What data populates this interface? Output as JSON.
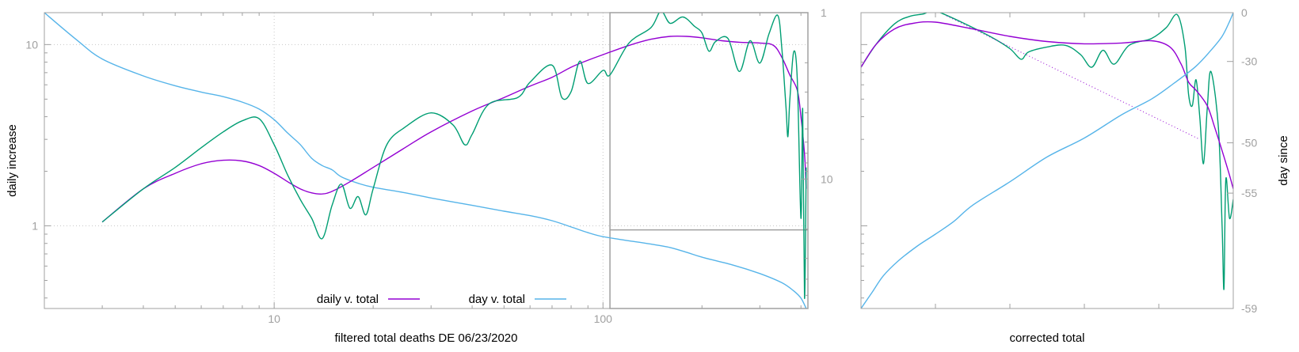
{
  "colors": {
    "daily": "#9400d3",
    "day": "#56b4e9",
    "raw": "#009e73",
    "axis": "#a0a0a0",
    "grid": "#c8c8c8"
  },
  "chart_data": [
    {
      "type": "line",
      "xlabel": "filtered total deaths DE 06/23/2020",
      "ylabel": "daily increase",
      "xscale": "log",
      "yscale": "log",
      "xlim": [
        2,
        420
      ],
      "ylim": [
        0.35,
        15
      ],
      "y2scale": "log",
      "y2lim": [
        1,
        60
      ],
      "y2reversed": true,
      "x_ticks": [
        {
          "value": 10,
          "label": "10"
        },
        {
          "value": 100,
          "label": "100"
        }
      ],
      "y_ticks": [
        {
          "value": 1,
          "label": "1"
        },
        {
          "value": 10,
          "label": "10"
        }
      ],
      "y2_ticks": [
        {
          "value": 1,
          "label": "1"
        },
        {
          "value": 10,
          "label": "10"
        }
      ],
      "grid": true,
      "legend_position": "bottom-center",
      "legend": [
        {
          "label": "daily v. total",
          "series": "daily"
        },
        {
          "label": "day v. total",
          "series": "day"
        }
      ],
      "series": [
        {
          "key": "day",
          "name": "day v. total",
          "axis": "y2",
          "points": [
            [
              2,
              1
            ],
            [
              2.5,
              1.45
            ],
            [
              3,
              1.9
            ],
            [
              4,
              2.4
            ],
            [
              5,
              2.75
            ],
            [
              6,
              3
            ],
            [
              7,
              3.2
            ],
            [
              8,
              3.45
            ],
            [
              9,
              3.8
            ],
            [
              10,
              4.4
            ],
            [
              11,
              5.3
            ],
            [
              12,
              6.2
            ],
            [
              13,
              7.5
            ],
            [
              14,
              8.3
            ],
            [
              15,
              8.8
            ],
            [
              16,
              9.7
            ],
            [
              18,
              10.6
            ],
            [
              20,
              11.2
            ],
            [
              25,
              12.1
            ],
            [
              30,
              13
            ],
            [
              40,
              14.4
            ],
            [
              50,
              15.6
            ],
            [
              60,
              16.6
            ],
            [
              70,
              17.8
            ],
            [
              80,
              19.4
            ],
            [
              90,
              21
            ],
            [
              100,
              22.2
            ],
            [
              120,
              23.5
            ],
            [
              140,
              24.6
            ],
            [
              160,
              25.8
            ],
            [
              180,
              27.6
            ],
            [
              200,
              29.5
            ],
            [
              250,
              33
            ],
            [
              300,
              37
            ],
            [
              350,
              42
            ],
            [
              380,
              47
            ],
            [
              400,
              52
            ],
            [
              415,
              60
            ]
          ]
        },
        {
          "key": "daily",
          "name": "daily v. total",
          "axis": "y",
          "points": [
            [
              3,
              1.05
            ],
            [
              4,
              1.6
            ],
            [
              5,
              1.95
            ],
            [
              6,
              2.2
            ],
            [
              7,
              2.3
            ],
            [
              8,
              2.28
            ],
            [
              9,
              2.15
            ],
            [
              10,
              1.95
            ],
            [
              11,
              1.75
            ],
            [
              12,
              1.6
            ],
            [
              13,
              1.52
            ],
            [
              14,
              1.5
            ],
            [
              15,
              1.55
            ],
            [
              17,
              1.75
            ],
            [
              20,
              2.1
            ],
            [
              25,
              2.7
            ],
            [
              30,
              3.3
            ],
            [
              40,
              4.3
            ],
            [
              50,
              5.1
            ],
            [
              60,
              5.9
            ],
            [
              70,
              6.6
            ],
            [
              80,
              7.5
            ],
            [
              90,
              8.2
            ],
            [
              100,
              8.8
            ],
            [
              120,
              9.9
            ],
            [
              140,
              10.7
            ],
            [
              160,
              11.1
            ],
            [
              180,
              11.1
            ],
            [
              200,
              10.9
            ],
            [
              230,
              10.5
            ],
            [
              260,
              10.3
            ],
            [
              300,
              10.2
            ],
            [
              330,
              9.9
            ],
            [
              350,
              8.5
            ],
            [
              370,
              6.8
            ],
            [
              390,
              5.6
            ],
            [
              400,
              4
            ],
            [
              410,
              2.5
            ],
            [
              415,
              1.6
            ]
          ]
        },
        {
          "key": "raw",
          "axis": "y",
          "points": [
            [
              3,
              1.05
            ],
            [
              4,
              1.6
            ],
            [
              5,
              2.1
            ],
            [
              6,
              2.7
            ],
            [
              7,
              3.3
            ],
            [
              8,
              3.8
            ],
            [
              9,
              3.9
            ],
            [
              10,
              2.8
            ],
            [
              11,
              1.9
            ],
            [
              12,
              1.4
            ],
            [
              13,
              1.1
            ],
            [
              14,
              0.85
            ],
            [
              15,
              1.3
            ],
            [
              16,
              1.7
            ],
            [
              17,
              1.25
            ],
            [
              18,
              1.45
            ],
            [
              19,
              1.15
            ],
            [
              20,
              1.6
            ],
            [
              22,
              2.8
            ],
            [
              25,
              3.5
            ],
            [
              30,
              4.2
            ],
            [
              35,
              3.6
            ],
            [
              38,
              2.8
            ],
            [
              40,
              3.2
            ],
            [
              45,
              4.7
            ],
            [
              55,
              5.1
            ],
            [
              60,
              6.2
            ],
            [
              70,
              7.7
            ],
            [
              75,
              5.1
            ],
            [
              80,
              5.5
            ],
            [
              85,
              8.1
            ],
            [
              90,
              6.1
            ],
            [
              100,
              7.2
            ],
            [
              105,
              6.8
            ],
            [
              120,
              10.2
            ],
            [
              140,
              12.4
            ],
            [
              150,
              15.3
            ],
            [
              160,
              13.1
            ],
            [
              175,
              14.2
            ],
            [
              190,
              12.6
            ],
            [
              200,
              11.6
            ],
            [
              210,
              9.2
            ],
            [
              220,
              10.4
            ],
            [
              240,
              10.8
            ],
            [
              260,
              7.1
            ],
            [
              280,
              10.5
            ],
            [
              300,
              7.9
            ],
            [
              320,
              11.5
            ],
            [
              340,
              14.5
            ],
            [
              350,
              9.5
            ],
            [
              360,
              4.6
            ],
            [
              365,
              3.1
            ],
            [
              370,
              4.9
            ],
            [
              380,
              9.1
            ],
            [
              390,
              6.4
            ],
            [
              400,
              1.1
            ],
            [
              405,
              4.4
            ],
            [
              410,
              0.4
            ],
            [
              415,
              2.1
            ]
          ]
        }
      ]
    },
    {
      "type": "line",
      "xlabel": "corrected total",
      "ylabel": "day since",
      "yscale": "log",
      "ylim": [
        0.35,
        15
      ],
      "y2_ticks": [
        {
          "value": 0,
          "label": "0"
        },
        {
          "value": -30,
          "label": "-30"
        },
        {
          "value": -50,
          "label": "-50"
        },
        {
          "value": -55,
          "label": "-55"
        },
        {
          "value": -59,
          "label": "-59"
        }
      ],
      "series": [
        {
          "key": "raw",
          "axis": "y",
          "points": [
            [
              0,
              7.5
            ],
            [
              0.04,
              10
            ],
            [
              0.09,
              13
            ],
            [
              0.13,
              14.3
            ],
            [
              0.17,
              14.8
            ],
            [
              0.19,
              15.5
            ],
            [
              0.22,
              14.8
            ],
            [
              0.28,
              13
            ],
            [
              0.35,
              11
            ],
            [
              0.4,
              9.5
            ],
            [
              0.43,
              8.3
            ],
            [
              0.45,
              9.1
            ],
            [
              0.5,
              9.7
            ],
            [
              0.55,
              9.9
            ],
            [
              0.59,
              8.8
            ],
            [
              0.62,
              7.5
            ],
            [
              0.65,
              9.3
            ],
            [
              0.68,
              7.8
            ],
            [
              0.72,
              9.9
            ],
            [
              0.78,
              10.8
            ],
            [
              0.82,
              12.4
            ],
            [
              0.85,
              14.6
            ],
            [
              0.87,
              9.8
            ],
            [
              0.88,
              5.3
            ],
            [
              0.89,
              4.6
            ],
            [
              0.9,
              6.4
            ],
            [
              0.91,
              4
            ],
            [
              0.92,
              2.2
            ],
            [
              0.93,
              4.4
            ],
            [
              0.94,
              7.1
            ],
            [
              0.96,
              3.5
            ],
            [
              0.97,
              1.0
            ],
            [
              0.975,
              0.45
            ],
            [
              0.98,
              1.8
            ],
            [
              0.99,
              1.1
            ],
            [
              1.0,
              1.4
            ]
          ]
        },
        {
          "key": "daily",
          "axis": "y",
          "points": [
            [
              0,
              7.5
            ],
            [
              0.04,
              10
            ],
            [
              0.09,
              12.2
            ],
            [
              0.14,
              13.1
            ],
            [
              0.2,
              13.3
            ],
            [
              0.3,
              12.2
            ],
            [
              0.4,
              11.1
            ],
            [
              0.5,
              10.4
            ],
            [
              0.6,
              10.1
            ],
            [
              0.7,
              10.2
            ],
            [
              0.78,
              10.5
            ],
            [
              0.83,
              9.7
            ],
            [
              0.86,
              7.8
            ],
            [
              0.88,
              6.2
            ],
            [
              0.9,
              5.6
            ],
            [
              0.93,
              4.6
            ],
            [
              0.95,
              3.5
            ],
            [
              0.97,
              2.6
            ],
            [
              0.99,
              1.9
            ],
            [
              1.0,
              1.6
            ]
          ]
        },
        {
          "key": "daily-fit",
          "axis": "y",
          "style": "dotted",
          "points": [
            [
              0.23,
              14.4
            ],
            [
              0.91,
              3.0
            ]
          ]
        },
        {
          "key": "day",
          "axis": "y",
          "points": [
            [
              0,
              0.35
            ],
            [
              0.03,
              0.43
            ],
            [
              0.06,
              0.53
            ],
            [
              0.1,
              0.64
            ],
            [
              0.15,
              0.77
            ],
            [
              0.2,
              0.9
            ],
            [
              0.25,
              1.06
            ],
            [
              0.3,
              1.3
            ],
            [
              0.4,
              1.75
            ],
            [
              0.5,
              2.4
            ],
            [
              0.6,
              3.05
            ],
            [
              0.7,
              4.1
            ],
            [
              0.78,
              5.0
            ],
            [
              0.84,
              6.1
            ],
            [
              0.9,
              7.6
            ],
            [
              0.94,
              9.3
            ],
            [
              0.97,
              11.1
            ],
            [
              0.99,
              13.4
            ],
            [
              1.0,
              15
            ]
          ]
        }
      ]
    }
  ]
}
